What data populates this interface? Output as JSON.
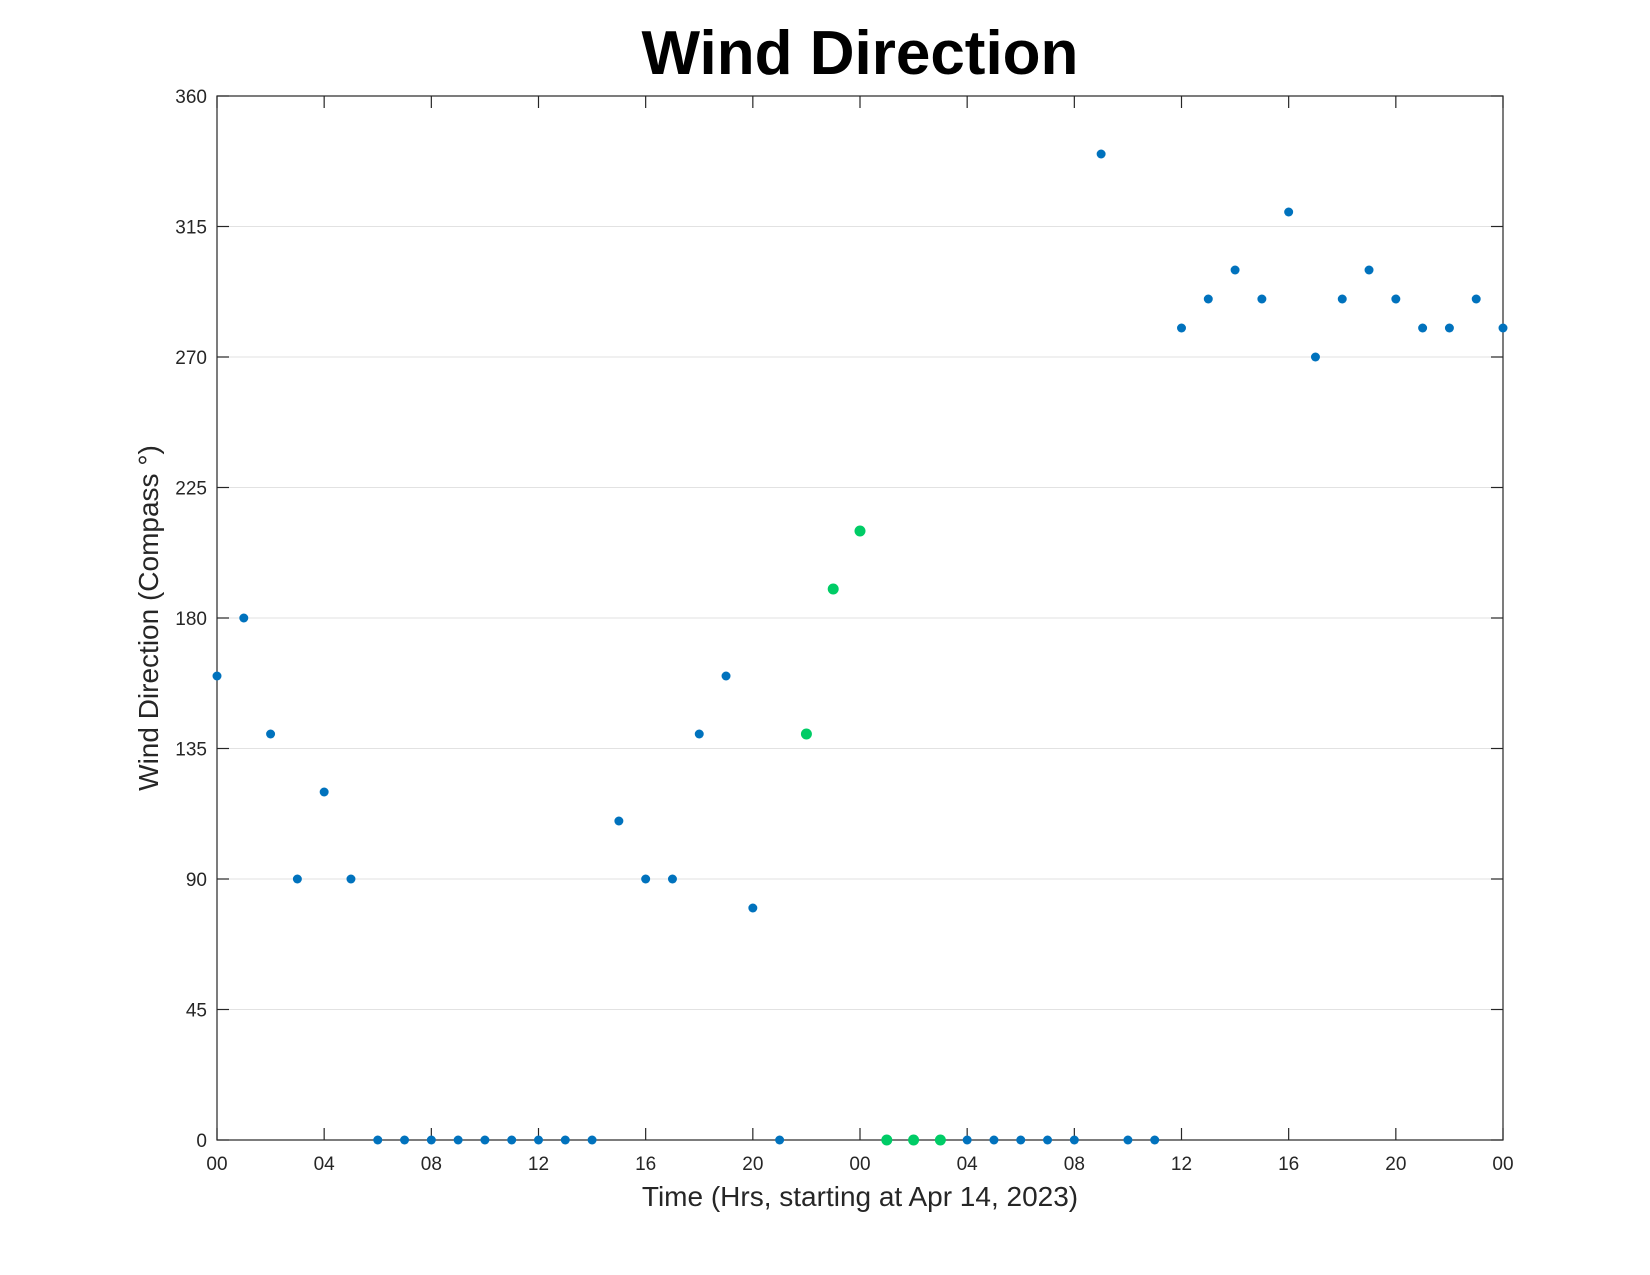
{
  "chart_data": {
    "type": "scatter",
    "title": "Wind Direction",
    "xlabel": "Time (Hrs, starting at Apr 14, 2023)",
    "ylabel": "Wind Direction (Compass °)",
    "x_unit": "hours",
    "xlim": [
      0,
      48
    ],
    "ylim": [
      0,
      360
    ],
    "x_ticks": [
      0,
      4,
      8,
      12,
      16,
      20,
      24,
      28,
      32,
      36,
      40,
      44,
      48
    ],
    "x_tick_labels": [
      "00",
      "04",
      "08",
      "12",
      "16",
      "20",
      "00",
      "04",
      "08",
      "12",
      "16",
      "20",
      "00"
    ],
    "y_ticks": [
      0,
      45,
      90,
      135,
      180,
      225,
      270,
      315,
      360
    ],
    "y_tick_labels": [
      "0",
      "45",
      "90",
      "135",
      "180",
      "225",
      "270",
      "315",
      "360"
    ],
    "grid": "horizontal",
    "colors": {
      "primary": "#0072bd",
      "highlight": "#00cc66"
    },
    "series": [
      {
        "color": "#0072bd",
        "x": [
          0,
          1,
          2,
          3,
          4,
          5,
          6,
          7,
          8,
          9,
          10,
          11,
          12,
          13,
          14,
          15,
          16,
          17,
          18,
          19,
          20,
          21,
          28,
          29,
          30,
          31,
          32,
          34,
          35,
          36,
          37,
          38,
          39,
          40,
          41,
          42,
          43,
          44,
          45,
          46,
          47,
          48
        ],
        "y": [
          160,
          180,
          140,
          90,
          120,
          90,
          0,
          0,
          0,
          0,
          0,
          0,
          0,
          0,
          0,
          110,
          90,
          90,
          140,
          160,
          80,
          0,
          0,
          0,
          0,
          0,
          0,
          0,
          0,
          280,
          290,
          300,
          290,
          320,
          270,
          290,
          300,
          290,
          280,
          280,
          290,
          280
        ]
      },
      {
        "color": "#00cc66",
        "x": [
          22,
          23,
          24,
          25,
          26,
          27
        ],
        "y": [
          140,
          190,
          210,
          0,
          0,
          0
        ]
      },
      {
        "color": "#0072bd",
        "x": [
          33
        ],
        "y": [
          340
        ]
      }
    ]
  }
}
